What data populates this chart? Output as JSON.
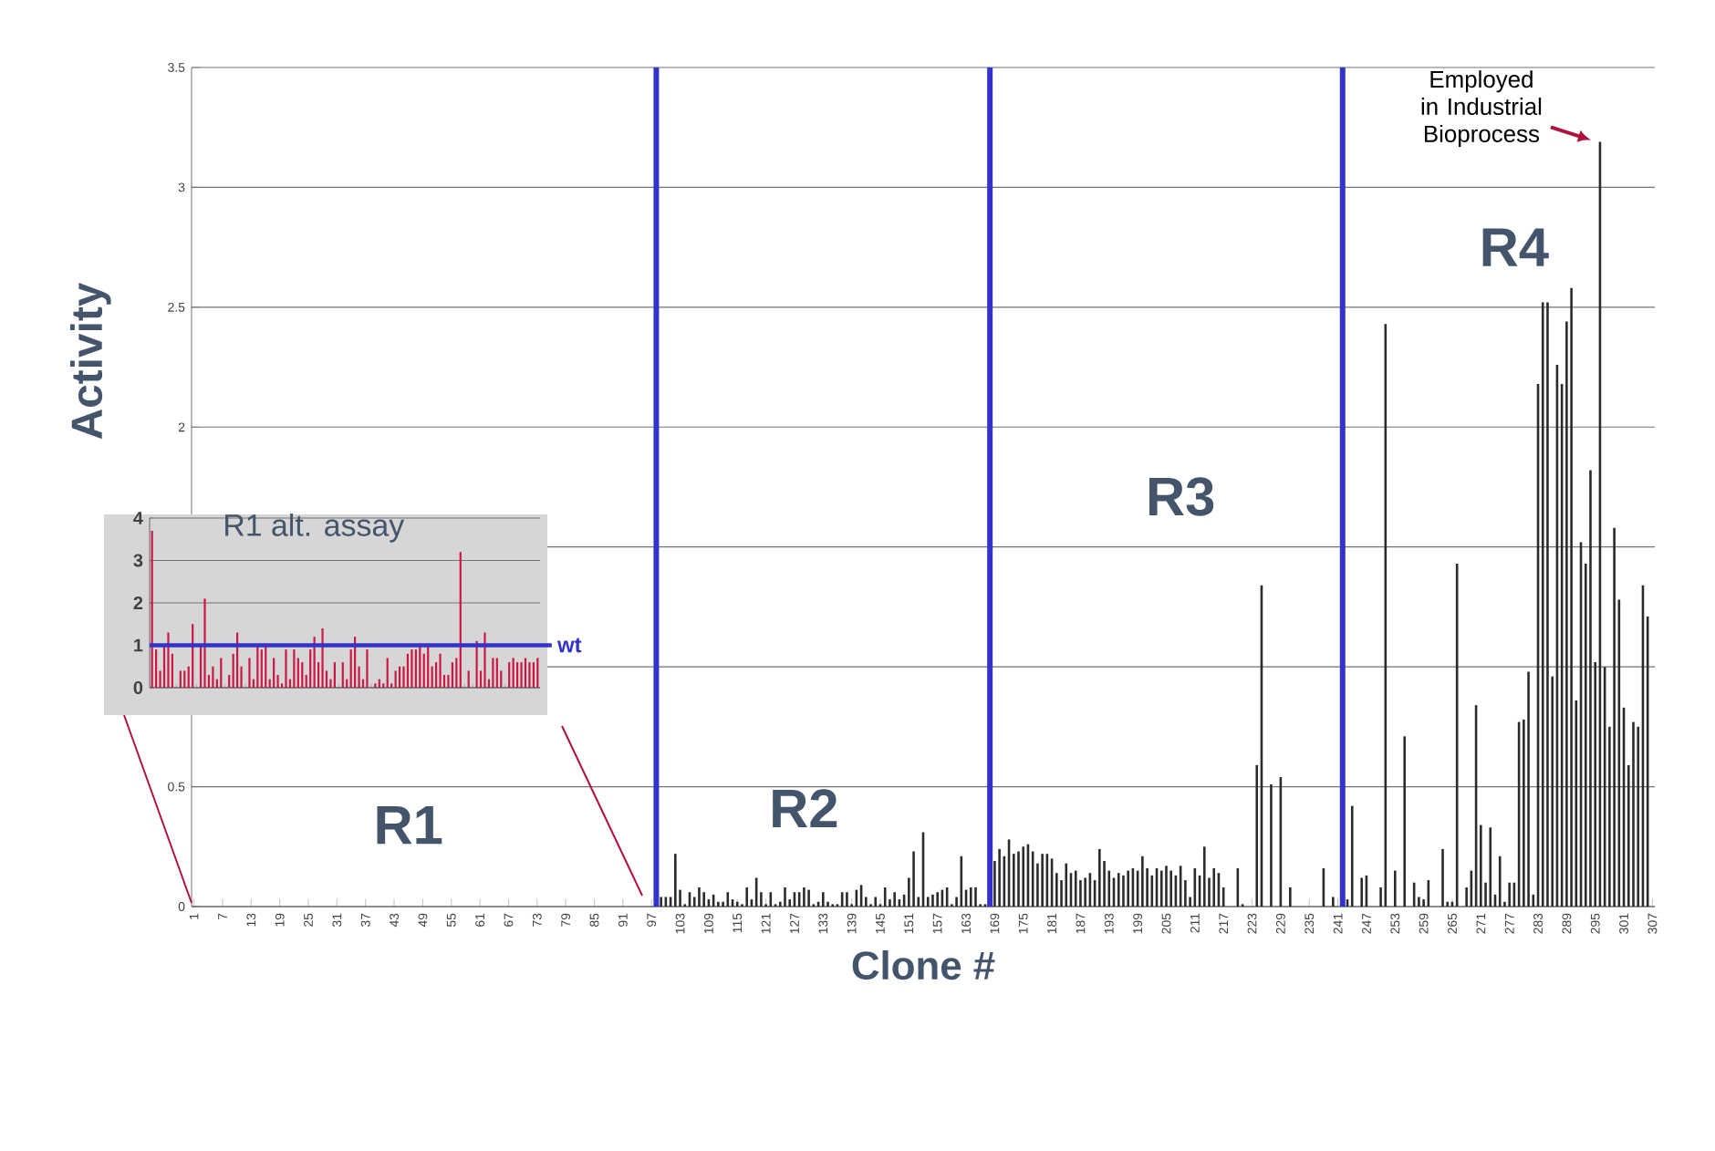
{
  "chart_data": [
    {
      "type": "bar",
      "xlabel": "Clone #",
      "ylabel": "Activity",
      "color": "#2b2b2b",
      "grid": "y",
      "x": [
        1,
        2,
        3,
        4,
        5,
        6,
        7,
        8,
        9,
        10,
        11,
        12,
        13,
        14,
        15,
        16,
        17,
        18,
        19,
        20,
        21,
        22,
        23,
        24,
        25,
        26,
        27,
        28,
        29,
        30,
        31,
        32,
        33,
        34,
        35,
        36,
        37,
        38,
        39,
        40,
        41,
        42,
        43,
        44,
        45,
        46,
        47,
        48,
        49,
        50,
        51,
        52,
        53,
        54,
        55,
        56,
        57,
        58,
        59,
        60,
        61,
        62,
        63,
        64,
        65,
        66,
        67,
        68,
        69,
        70,
        71,
        72,
        73,
        74,
        75,
        76,
        77,
        78,
        79,
        80,
        81,
        82,
        83,
        84,
        85,
        86,
        87,
        88,
        89,
        90,
        91,
        92,
        93,
        94,
        95,
        96,
        97,
        98,
        99,
        100,
        101,
        102,
        103,
        104,
        105,
        106,
        107,
        108,
        109,
        110,
        111,
        112,
        113,
        114,
        115,
        116,
        117,
        118,
        119,
        120,
        121,
        122,
        123,
        124,
        125,
        126,
        127,
        128,
        129,
        130,
        131,
        132,
        133,
        134,
        135,
        136,
        137,
        138,
        139,
        140,
        141,
        142,
        143,
        144,
        145,
        146,
        147,
        148,
        149,
        150,
        151,
        152,
        153,
        154,
        155,
        156,
        157,
        158,
        159,
        160,
        161,
        162,
        163,
        164,
        165,
        166,
        167,
        168,
        169,
        170,
        171,
        172,
        173,
        174,
        175,
        176,
        177,
        178,
        179,
        180,
        181,
        182,
        183,
        184,
        185,
        186,
        187,
        188,
        189,
        190,
        191,
        192,
        193,
        194,
        195,
        196,
        197,
        198,
        199,
        200,
        201,
        202,
        203,
        204,
        205,
        206,
        207,
        208,
        209,
        210,
        211,
        212,
        213,
        214,
        215,
        216,
        217,
        218,
        219,
        220,
        221,
        222,
        223,
        224,
        225,
        226,
        227,
        228,
        229,
        230,
        231,
        232,
        233,
        234,
        235,
        236,
        237,
        238,
        239,
        240,
        241,
        242,
        243,
        244,
        245,
        246,
        247,
        248,
        249,
        250,
        251,
        252,
        253,
        254,
        255,
        256,
        257,
        258,
        259,
        260,
        261,
        262,
        263,
        264,
        265,
        266,
        267,
        268,
        269,
        270,
        271,
        272,
        273,
        274,
        275,
        276,
        277,
        278,
        279,
        280,
        281,
        282,
        283,
        284,
        285,
        286,
        287,
        288,
        289,
        290,
        291,
        292,
        293,
        294,
        295,
        296,
        297,
        298,
        299,
        300,
        301,
        302,
        303,
        304,
        305,
        306,
        307
      ],
      "values": [
        0,
        0,
        0,
        0,
        0,
        0,
        0,
        0,
        0,
        0,
        0,
        0,
        0,
        0,
        0,
        0,
        0,
        0,
        0,
        0,
        0,
        0,
        0,
        0,
        0,
        0,
        0,
        0,
        0,
        0,
        0,
        0,
        0,
        0,
        0,
        0,
        0,
        0,
        0,
        0,
        0,
        0,
        0,
        0,
        0,
        0,
        0,
        0,
        0,
        0,
        0,
        0,
        0,
        0,
        0,
        0,
        0,
        0,
        0,
        0,
        0,
        0,
        0,
        0,
        0,
        0,
        0,
        0,
        0,
        0,
        0,
        0,
        0,
        0,
        0,
        0,
        0,
        0,
        0,
        0,
        0,
        0,
        0,
        0,
        0,
        0,
        0,
        0,
        0,
        0,
        0,
        0,
        0,
        0,
        0,
        0,
        0,
        null,
        0.04,
        0.04,
        0.04,
        0.22,
        0.07,
        0.01,
        0.06,
        0.04,
        0.08,
        0.06,
        0.03,
        0.05,
        0.02,
        0.02,
        0.06,
        0.03,
        0.02,
        0.01,
        0.08,
        0.03,
        0.12,
        0.06,
        0.01,
        0.06,
        0.01,
        0.02,
        0.08,
        0.03,
        0.06,
        0.06,
        0.08,
        0.07,
        0.01,
        0.02,
        0.06,
        0.02,
        0.01,
        0.01,
        0.06,
        0.06,
        0.01,
        0.07,
        0.09,
        0.04,
        0.01,
        0.04,
        0.01,
        0.08,
        0.03,
        0.06,
        0.03,
        0.05,
        0.12,
        0.23,
        0.04,
        0.31,
        0.04,
        0.05,
        0.06,
        0.07,
        0.08,
        0.01,
        0.04,
        0.21,
        0.07,
        0.08,
        0.08,
        0.01,
        0.01,
        null,
        0.19,
        0.24,
        0.21,
        0.28,
        0.22,
        0.23,
        0.25,
        0.26,
        0.23,
        0.18,
        0.22,
        0.22,
        0.2,
        0.14,
        0.11,
        0.18,
        0.14,
        0.15,
        0.11,
        0.12,
        0.14,
        0.11,
        0.24,
        0.19,
        0.15,
        0.12,
        0.14,
        0.13,
        0.15,
        0.16,
        0.15,
        0.21,
        0.16,
        0.13,
        0.16,
        0.15,
        0.17,
        0.15,
        0.13,
        0.17,
        0.11,
        0.04,
        0.16,
        0.13,
        0.25,
        0.12,
        0.16,
        0.14,
        0.08,
        0,
        0,
        0.16,
        0.01,
        0,
        0,
        0.59,
        1.34,
        0,
        0.51,
        0,
        0.54,
        0,
        0.08,
        0,
        0,
        0,
        0,
        0,
        0,
        0.16,
        0,
        0.04,
        0,
        null,
        0.03,
        0.42,
        0,
        0.12,
        0.13,
        0,
        0,
        0.08,
        2.43,
        0,
        0.15,
        0,
        0.71,
        0,
        0.1,
        0.04,
        0.03,
        0.11,
        0,
        0,
        0.24,
        0.02,
        0.02,
        1.43,
        0,
        0.08,
        0.15,
        0.84,
        0.34,
        0.1,
        0.33,
        0.05,
        0.21,
        0.02,
        0.1,
        0.1,
        0.77,
        0.78,
        0.98,
        0.05,
        2.18,
        2.52,
        2.52,
        0.96,
        2.26,
        2.18,
        2.44,
        2.58,
        0.86,
        1.52,
        1.43,
        1.82,
        1.02,
        3.19,
        1.0,
        0.75,
        1.58,
        1.28,
        0.83,
        0.59,
        0.77,
        0.75,
        1.34,
        1.21,
        0
      ],
      "xlim": [
        0.5,
        307.5
      ],
      "ylim": [
        0,
        3.5
      ],
      "xticks": [
        1,
        7,
        13,
        19,
        25,
        31,
        37,
        43,
        49,
        55,
        61,
        67,
        73,
        79,
        85,
        91,
        97,
        103,
        109,
        115,
        121,
        127,
        133,
        139,
        145,
        151,
        157,
        163,
        169,
        175,
        181,
        187,
        193,
        199,
        205,
        211,
        217,
        223,
        229,
        235,
        241,
        247,
        253,
        259,
        265,
        271,
        277,
        283,
        289,
        295,
        301,
        307
      ],
      "yticks": [
        0,
        0.5,
        {
          "value": 1,
          "label": null
        },
        {
          "value": 1.5,
          "label": null
        },
        2,
        2.5,
        3,
        3.5
      ],
      "ref_lines": [
        {
          "axis": "x",
          "value": 98,
          "color": "#3333cc"
        },
        {
          "axis": "x",
          "value": 168,
          "color": "#3333cc"
        },
        {
          "axis": "x",
          "value": 242,
          "color": "#3333cc"
        }
      ],
      "annotations": [
        "R1",
        "R2",
        "R3",
        "R4",
        {
          "text": "Employed in Industrial Bioprocess",
          "x": 296,
          "y": 3.19
        }
      ]
    },
    {
      "type": "bar",
      "title": "R1 alt. assay",
      "color": "#cc1745",
      "grid": "y",
      "tick_labels": "y",
      "categories": [
        null,
        null,
        null,
        null,
        null,
        null,
        null,
        null,
        null,
        null,
        null,
        null,
        null,
        null,
        null,
        null,
        null,
        null,
        null,
        null,
        null,
        null,
        null,
        null,
        null,
        null,
        null,
        null,
        null,
        null,
        null,
        null,
        null,
        null,
        null,
        null,
        null,
        null,
        null,
        null,
        null,
        null,
        null,
        null,
        null,
        null,
        null,
        null,
        null,
        null,
        null,
        null,
        null,
        null,
        null,
        null,
        null,
        null,
        null,
        null,
        null,
        null,
        null,
        null,
        null,
        null,
        null,
        null,
        null,
        null,
        null,
        null,
        null,
        null,
        null,
        null,
        null,
        null,
        null,
        null,
        null,
        null,
        null,
        null,
        null,
        null,
        null,
        null,
        null,
        null,
        null,
        null,
        null,
        null,
        null,
        null
      ],
      "values": [
        3.7,
        0.9,
        0.4,
        1.0,
        1.3,
        0.8,
        0,
        0.4,
        0.4,
        0.5,
        1.5,
        0,
        1.0,
        2.1,
        0.3,
        0.5,
        0.2,
        0.7,
        0,
        0.3,
        0.8,
        1.3,
        0.5,
        0,
        0.7,
        0.2,
        1.0,
        0.9,
        1.0,
        0.2,
        0.7,
        0.3,
        0.1,
        0.9,
        0.2,
        0.9,
        0.7,
        0.6,
        0.3,
        0.9,
        1.2,
        0.6,
        1.4,
        0.4,
        0.2,
        0.6,
        0,
        0.6,
        0.2,
        0.9,
        1.2,
        0.5,
        0.2,
        0.9,
        0,
        0.1,
        0.2,
        0.1,
        0.7,
        0.1,
        0.4,
        0.5,
        0.5,
        0.8,
        0.9,
        0.9,
        1.0,
        0.8,
        1.0,
        0.5,
        0.6,
        0.8,
        0.3,
        0.3,
        0.6,
        0.7,
        3.2,
        0,
        0.4,
        0,
        1.1,
        0.4,
        1.3,
        0.2,
        0.7,
        0.7,
        0.4,
        0,
        0.6,
        0.7,
        0.6,
        0.6,
        0.7,
        0.6,
        0.6,
        0.7
      ],
      "ylim": [
        0,
        4
      ],
      "yticks": [
        0,
        1,
        2,
        3,
        4
      ],
      "ref_lines": [
        {
          "axis": "y",
          "value": 1,
          "label": "wt",
          "color": "#3333cc"
        }
      ]
    }
  ]
}
